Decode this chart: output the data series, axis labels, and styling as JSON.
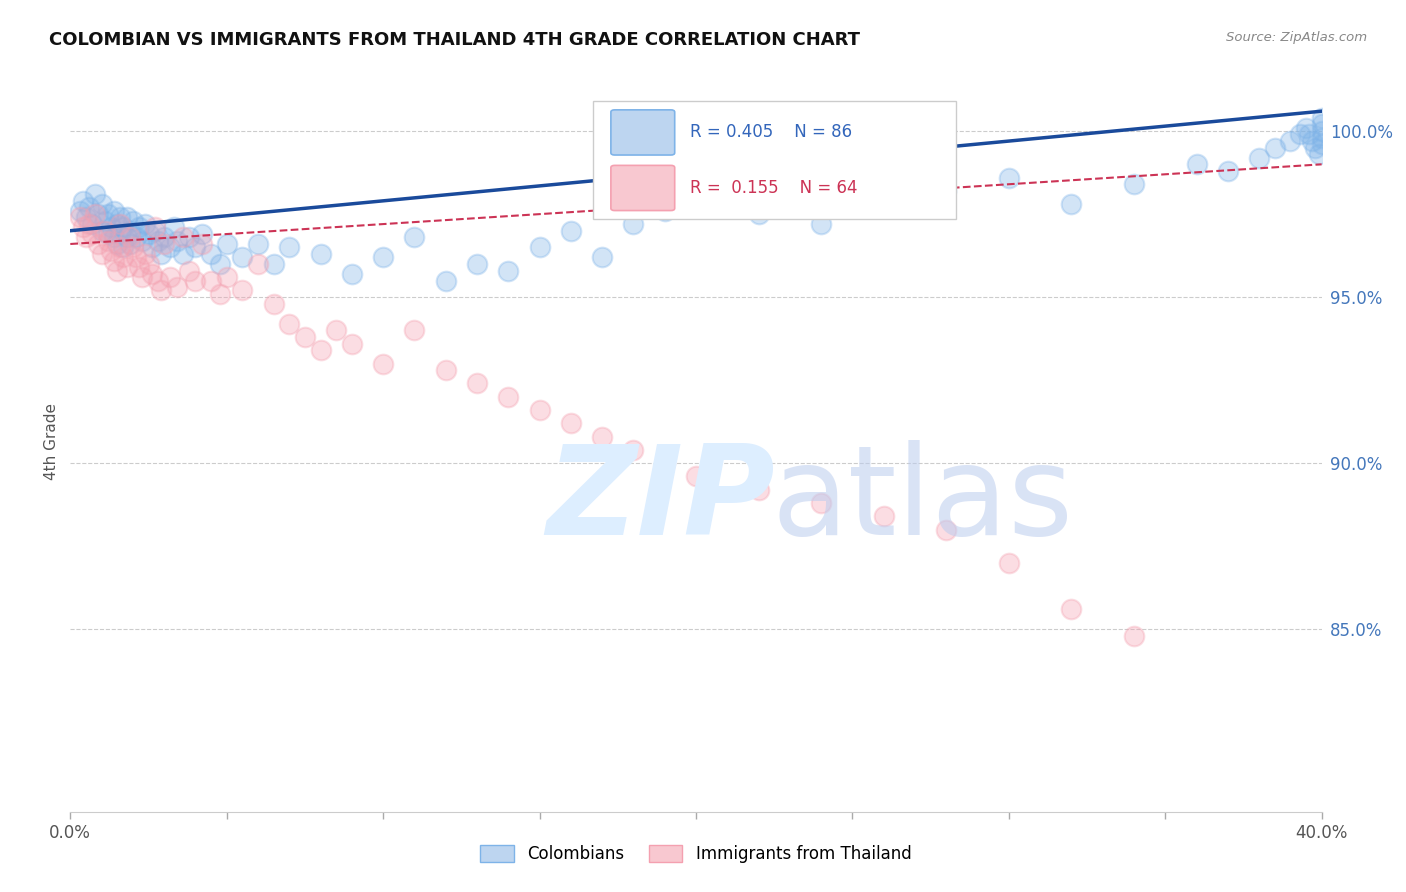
{
  "title": "COLOMBIAN VS IMMIGRANTS FROM THAILAND 4TH GRADE CORRELATION CHART",
  "source": "Source: ZipAtlas.com",
  "ylabel": "4th Grade",
  "yaxis_labels": [
    "85.0%",
    "90.0%",
    "95.0%",
    "100.0%"
  ],
  "yaxis_values": [
    0.85,
    0.9,
    0.95,
    1.0
  ],
  "xmin": 0.0,
  "xmax": 0.4,
  "ymin": 0.795,
  "ymax": 1.018,
  "blue_color": "#7EB3E8",
  "pink_color": "#F4A0B0",
  "trendline_blue_color": "#1A4A9B",
  "trendline_pink_color": "#CC3355",
  "background_color": "#FFFFFF",
  "blue_x": [
    0.003,
    0.004,
    0.005,
    0.006,
    0.007,
    0.008,
    0.009,
    0.01,
    0.01,
    0.011,
    0.012,
    0.012,
    0.013,
    0.014,
    0.014,
    0.015,
    0.015,
    0.016,
    0.016,
    0.017,
    0.017,
    0.018,
    0.018,
    0.019,
    0.019,
    0.02,
    0.021,
    0.022,
    0.023,
    0.024,
    0.025,
    0.026,
    0.027,
    0.028,
    0.029,
    0.03,
    0.032,
    0.033,
    0.034,
    0.036,
    0.038,
    0.04,
    0.042,
    0.045,
    0.048,
    0.05,
    0.055,
    0.06,
    0.065,
    0.07,
    0.08,
    0.09,
    0.1,
    0.11,
    0.12,
    0.13,
    0.14,
    0.15,
    0.16,
    0.17,
    0.18,
    0.19,
    0.2,
    0.22,
    0.24,
    0.26,
    0.28,
    0.3,
    0.32,
    0.34,
    0.36,
    0.37,
    0.38,
    0.385,
    0.39,
    0.393,
    0.395,
    0.396,
    0.397,
    0.398,
    0.399,
    0.4,
    0.4,
    0.4,
    0.4,
    0.4
  ],
  "blue_y": [
    0.976,
    0.979,
    0.974,
    0.977,
    0.972,
    0.981,
    0.975,
    0.97,
    0.978,
    0.973,
    0.969,
    0.975,
    0.971,
    0.968,
    0.976,
    0.972,
    0.966,
    0.974,
    0.969,
    0.971,
    0.965,
    0.968,
    0.974,
    0.97,
    0.966,
    0.973,
    0.968,
    0.971,
    0.967,
    0.972,
    0.969,
    0.965,
    0.97,
    0.967,
    0.963,
    0.968,
    0.965,
    0.971,
    0.967,
    0.963,
    0.968,
    0.965,
    0.969,
    0.963,
    0.96,
    0.966,
    0.962,
    0.966,
    0.96,
    0.965,
    0.963,
    0.957,
    0.962,
    0.968,
    0.955,
    0.96,
    0.958,
    0.965,
    0.97,
    0.962,
    0.972,
    0.976,
    0.978,
    0.975,
    0.972,
    0.98,
    0.982,
    0.986,
    0.978,
    0.984,
    0.99,
    0.988,
    0.992,
    0.995,
    0.997,
    0.999,
    1.001,
    0.999,
    0.997,
    0.995,
    0.993,
    1.0,
    0.998,
    0.996,
    1.002,
    1.004
  ],
  "pink_x": [
    0.003,
    0.004,
    0.005,
    0.006,
    0.007,
    0.008,
    0.009,
    0.01,
    0.011,
    0.012,
    0.013,
    0.014,
    0.015,
    0.016,
    0.016,
    0.017,
    0.018,
    0.019,
    0.02,
    0.021,
    0.022,
    0.023,
    0.024,
    0.025,
    0.026,
    0.027,
    0.028,
    0.029,
    0.03,
    0.032,
    0.034,
    0.036,
    0.038,
    0.04,
    0.042,
    0.045,
    0.048,
    0.05,
    0.055,
    0.06,
    0.065,
    0.07,
    0.075,
    0.08,
    0.085,
    0.09,
    0.1,
    0.11,
    0.12,
    0.13,
    0.14,
    0.15,
    0.16,
    0.17,
    0.18,
    0.19,
    0.2,
    0.22,
    0.24,
    0.26,
    0.28,
    0.3,
    0.32,
    0.34
  ],
  "pink_y": [
    0.974,
    0.971,
    0.968,
    0.972,
    0.969,
    0.975,
    0.966,
    0.963,
    0.97,
    0.967,
    0.964,
    0.961,
    0.958,
    0.965,
    0.972,
    0.962,
    0.959,
    0.968,
    0.965,
    0.962,
    0.959,
    0.956,
    0.963,
    0.96,
    0.957,
    0.971,
    0.955,
    0.952,
    0.966,
    0.956,
    0.953,
    0.968,
    0.958,
    0.955,
    0.966,
    0.955,
    0.951,
    0.956,
    0.952,
    0.96,
    0.948,
    0.942,
    0.938,
    0.934,
    0.94,
    0.936,
    0.93,
    0.94,
    0.928,
    0.924,
    0.92,
    0.916,
    0.912,
    0.908,
    0.904,
    0.9,
    0.896,
    0.892,
    0.888,
    0.884,
    0.88,
    0.87,
    0.856,
    0.848
  ],
  "trend_blue_x0": 0.0,
  "trend_blue_x1": 0.4,
  "trend_blue_y0": 0.97,
  "trend_blue_y1": 1.006,
  "trend_pink_x0": 0.0,
  "trend_pink_x1": 0.4,
  "trend_pink_y0": 0.966,
  "trend_pink_y1": 0.99
}
